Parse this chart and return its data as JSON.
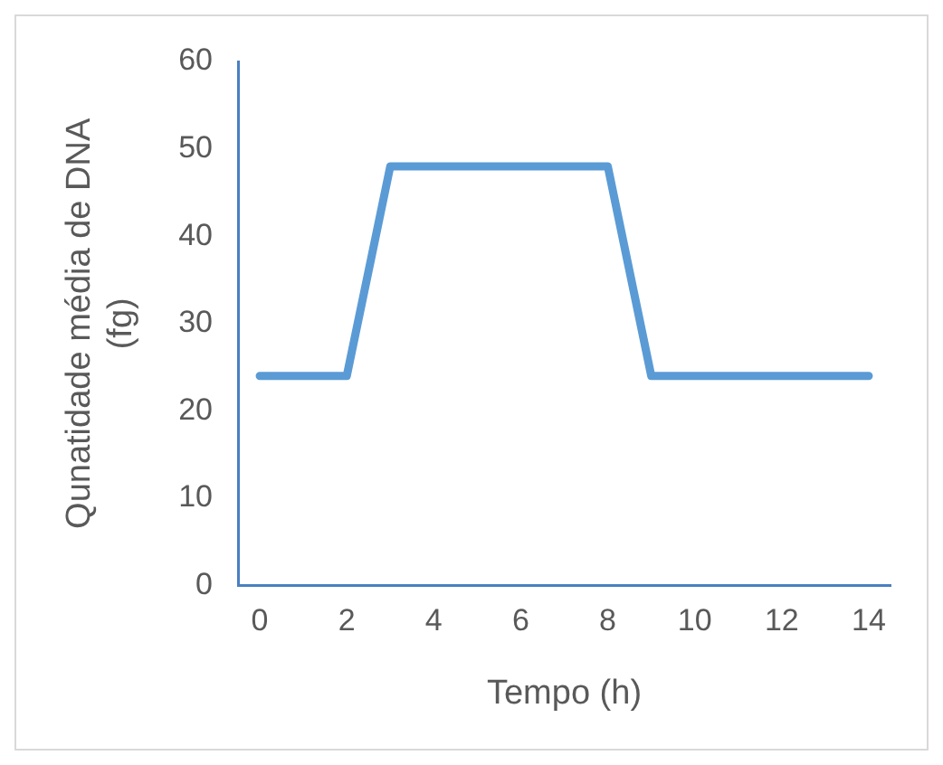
{
  "chart_data": {
    "type": "line",
    "xlabel": "Tempo (h)",
    "ylabel": "Qunatidade média de DNA (fg)",
    "x": [
      0,
      2,
      3,
      8,
      9,
      14
    ],
    "series": [
      {
        "color": "#5b9bd5",
        "values": [
          24,
          24,
          48,
          48,
          24,
          24
        ]
      }
    ],
    "xlim": [
      -0.5,
      14.5
    ],
    "xticks": [
      0,
      2,
      4,
      6,
      8,
      10,
      12,
      14
    ],
    "ylim": [
      0,
      60
    ],
    "yticks": [
      0,
      10,
      20,
      30,
      40,
      50,
      60
    ],
    "grid": false,
    "legend": false,
    "marker": "none",
    "line_style": "solid"
  }
}
